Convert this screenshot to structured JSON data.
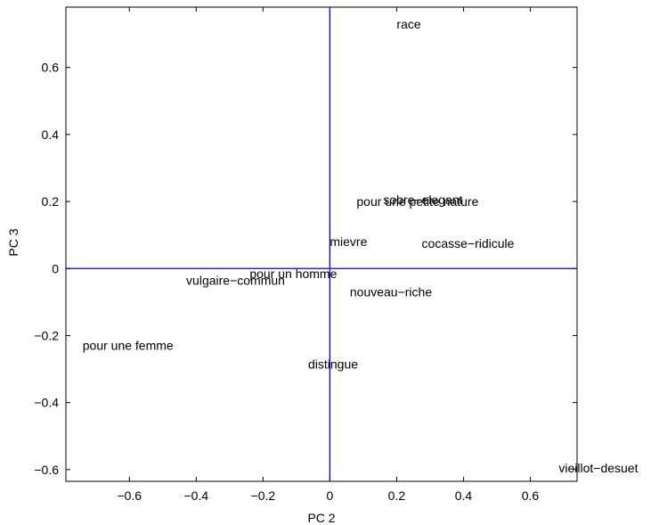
{
  "chart_data": {
    "type": "scatter",
    "title": "",
    "xlabel": "PC 2",
    "ylabel": "PC 3",
    "xlim": [
      -0.79,
      0.74
    ],
    "ylim": [
      -0.635,
      0.78
    ],
    "xticks": [
      -0.6,
      -0.4,
      -0.2,
      0,
      0.2,
      0.4,
      0.6
    ],
    "yticks": [
      -0.6,
      -0.4,
      -0.2,
      0,
      0.2,
      0.4,
      0.6
    ],
    "xtick_labels": [
      "−0.6",
      "−0.4",
      "−0.2",
      "0",
      "0.2",
      "0.4",
      "0.6"
    ],
    "ytick_labels": [
      "−0.6",
      "−0.4",
      "−0.2",
      "0",
      "0.2",
      "0.4",
      "0.6"
    ],
    "grid": false,
    "reference_lines": {
      "x": 0,
      "y": 0,
      "color": "#0000cc"
    },
    "points": [
      {
        "label": "race",
        "x": 0.2,
        "y": 0.73
      },
      {
        "label": "sobre−elegant",
        "x": 0.16,
        "y": 0.205
      },
      {
        "label": "pour une petite nature",
        "x": 0.08,
        "y": 0.2
      },
      {
        "label": "mievre",
        "x": 0.0,
        "y": 0.08
      },
      {
        "label": "cocasse−ridicule",
        "x": 0.275,
        "y": 0.075
      },
      {
        "label": "pour un homme",
        "x": -0.24,
        "y": -0.015
      },
      {
        "label": "vulgaire−commun",
        "x": -0.43,
        "y": -0.035
      },
      {
        "label": "nouveau−riche",
        "x": 0.06,
        "y": -0.07
      },
      {
        "label": "pour une femme",
        "x": -0.74,
        "y": -0.23
      },
      {
        "label": "distingue",
        "x": -0.065,
        "y": -0.285
      },
      {
        "label": "vieillot−desuet",
        "x": 0.685,
        "y": -0.595
      }
    ]
  }
}
